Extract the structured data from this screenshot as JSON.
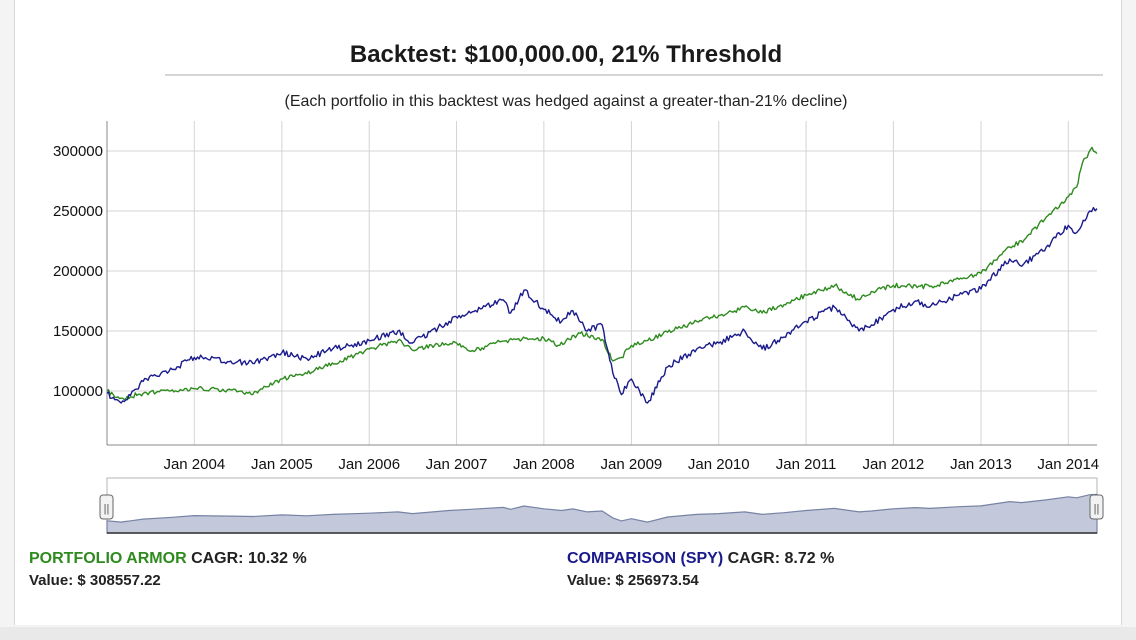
{
  "chart_data": {
    "type": "line",
    "title": "Backtest: $100,000.00, 21% Threshold",
    "subtitle": "(Each portfolio in this backtest was hedged against a greater-than-21% decline)",
    "xlabel": "",
    "ylabel": "",
    "x_range": [
      "2003-01-01",
      "2014-05-01"
    ],
    "ylim": [
      55000,
      325000
    ],
    "y_ticks": [
      100000,
      150000,
      200000,
      250000,
      300000
    ],
    "x_ticks": [
      "Jan 2004",
      "Jan 2005",
      "Jan 2006",
      "Jan 2007",
      "Jan 2008",
      "Jan 2009",
      "Jan 2010",
      "Jan 2011",
      "Jan 2012",
      "Jan 2013",
      "Jan 2014"
    ],
    "grid": true,
    "colors": {
      "portfolio": "#2e8b1e",
      "comparison": "#1a1a8c",
      "navigator_fill": "#c3c9da",
      "navigator_line": "#7783a5"
    },
    "series": [
      {
        "name": "PORTFOLIO ARMOR",
        "color": "#2e8b1e",
        "x": [
          "2003-01-01",
          "2003-03-01",
          "2003-06-01",
          "2003-10-01",
          "2004-01-01",
          "2004-06-01",
          "2004-09-01",
          "2005-01-01",
          "2005-06-01",
          "2005-09-01",
          "2006-01-01",
          "2006-05-01",
          "2006-07-01",
          "2006-10-01",
          "2007-01-01",
          "2007-03-01",
          "2007-07-01",
          "2007-10-01",
          "2008-01-01",
          "2008-03-01",
          "2008-06-01",
          "2008-09-01",
          "2008-10-15",
          "2008-11-20",
          "2009-01-01",
          "2009-03-10",
          "2009-06-01",
          "2009-10-01",
          "2010-01-01",
          "2010-05-01",
          "2010-07-01",
          "2010-10-01",
          "2011-01-01",
          "2011-05-01",
          "2011-08-10",
          "2011-10-01",
          "2012-01-01",
          "2012-06-01",
          "2012-10-01",
          "2013-01-01",
          "2013-05-01",
          "2013-07-01",
          "2013-10-01",
          "2014-01-01",
          "2014-02-05",
          "2014-03-01",
          "2014-04-10",
          "2014-05-01"
        ],
        "values": [
          100000,
          94000,
          98000,
          101000,
          102000,
          101000,
          97000,
          110000,
          118000,
          125000,
          135000,
          142000,
          134000,
          138000,
          140000,
          133000,
          141000,
          143000,
          144000,
          138000,
          148000,
          143000,
          125000,
          128000,
          138000,
          142000,
          149000,
          158000,
          163000,
          170000,
          165000,
          172000,
          180000,
          188000,
          176000,
          183000,
          188000,
          187000,
          193000,
          198000,
          220000,
          226000,
          245000,
          262000,
          270000,
          290000,
          303000,
          298000
        ]
      },
      {
        "name": "COMPARISON (SPY)",
        "color": "#1a1a8c",
        "x": [
          "2003-01-01",
          "2003-03-01",
          "2003-06-01",
          "2003-10-01",
          "2004-01-01",
          "2004-06-01",
          "2004-09-01",
          "2005-01-01",
          "2005-04-15",
          "2005-08-01",
          "2006-01-01",
          "2006-05-01",
          "2006-07-01",
          "2006-12-01",
          "2007-03-01",
          "2007-07-15",
          "2007-08-15",
          "2007-10-10",
          "2008-01-01",
          "2008-03-15",
          "2008-05-01",
          "2008-06-30",
          "2008-09-01",
          "2008-10-15",
          "2008-11-20",
          "2009-01-01",
          "2009-03-09",
          "2009-06-01",
          "2009-10-01",
          "2010-01-01",
          "2010-04-20",
          "2010-07-01",
          "2010-10-01",
          "2011-01-01",
          "2011-04-30",
          "2011-08-10",
          "2011-10-01",
          "2012-01-01",
          "2012-04-01",
          "2012-06-01",
          "2012-10-01",
          "2013-01-01",
          "2013-05-01",
          "2013-06-20",
          "2013-10-01",
          "2014-01-01",
          "2014-02-05",
          "2014-04-01",
          "2014-05-01"
        ],
        "values": [
          98000,
          90000,
          108000,
          118000,
          128000,
          125000,
          123000,
          132000,
          127000,
          135000,
          142000,
          150000,
          140000,
          158000,
          165000,
          176000,
          165000,
          184000,
          168000,
          158000,
          167000,
          150000,
          155000,
          115000,
          97000,
          110000,
          90000,
          120000,
          135000,
          140000,
          150000,
          135000,
          145000,
          158000,
          170000,
          150000,
          155000,
          168000,
          175000,
          170000,
          180000,
          185000,
          210000,
          204000,
          220000,
          238000,
          232000,
          250000,
          252000
        ]
      }
    ],
    "navigator": {
      "handle_left": "||",
      "handle_right": "||"
    }
  },
  "stats": {
    "left": {
      "name": "PORTFOLIO ARMOR",
      "cagr_label": " CAGR: 10.32 %",
      "value_label": "Value: $ 308557.22"
    },
    "right": {
      "name": "COMPARISON (SPY)",
      "cagr_label": " CAGR: 8.72 %",
      "value_label": "Value: $ 256973.54"
    }
  }
}
